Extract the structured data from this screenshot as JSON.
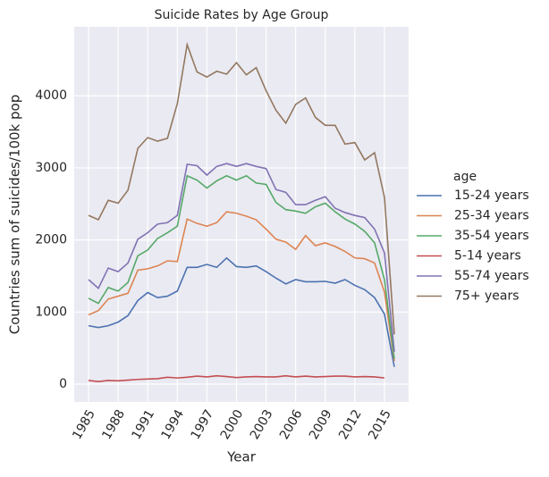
{
  "chart_data": {
    "type": "line",
    "title": "Suicide Rates by Age Group",
    "xlabel": "Year",
    "ylabel": "Countries sum of suicides/100k pop",
    "legend_title": "age",
    "legend": "right",
    "grid": true,
    "x": [
      1985,
      1986,
      1987,
      1988,
      1989,
      1990,
      1991,
      1992,
      1993,
      1994,
      1995,
      1996,
      1997,
      1998,
      1999,
      2000,
      2001,
      2002,
      2003,
      2004,
      2005,
      2006,
      2007,
      2008,
      2009,
      2010,
      2011,
      2012,
      2013,
      2014,
      2015,
      2016
    ],
    "xlim": [
      1983.55,
      2017.45
    ],
    "xticks": [
      1985,
      1988,
      1991,
      1994,
      1997,
      2000,
      2003,
      2006,
      2009,
      2012,
      2015
    ],
    "ylim": [
      -248,
      4957
    ],
    "yticks": [
      0,
      1000,
      2000,
      3000,
      4000
    ],
    "series": [
      {
        "name": "15-24 years",
        "color": "#4c72b0",
        "values": [
          810,
          785,
          810,
          860,
          950,
          1160,
          1270,
          1200,
          1220,
          1290,
          1620,
          1620,
          1660,
          1620,
          1750,
          1630,
          1620,
          1640,
          1560,
          1470,
          1390,
          1450,
          1420,
          1420,
          1425,
          1400,
          1450,
          1370,
          1310,
          1200,
          970,
          240
        ]
      },
      {
        "name": "25-34 years",
        "color": "#dd8452",
        "values": [
          960,
          1020,
          1180,
          1220,
          1260,
          1580,
          1600,
          1640,
          1710,
          1700,
          2290,
          2230,
          2190,
          2240,
          2390,
          2370,
          2330,
          2280,
          2150,
          2010,
          1970,
          1870,
          2060,
          1920,
          1960,
          1910,
          1840,
          1750,
          1740,
          1680,
          1280,
          320
        ]
      },
      {
        "name": "35-54 years",
        "color": "#55a868",
        "values": [
          1190,
          1120,
          1340,
          1290,
          1410,
          1780,
          1860,
          2020,
          2100,
          2190,
          2890,
          2830,
          2720,
          2820,
          2890,
          2830,
          2890,
          2790,
          2770,
          2520,
          2420,
          2400,
          2370,
          2460,
          2510,
          2390,
          2290,
          2220,
          2120,
          1960,
          1450,
          350
        ]
      },
      {
        "name": "5-14 years",
        "color": "#c44e52",
        "values": [
          50,
          35,
          50,
          45,
          55,
          65,
          70,
          75,
          95,
          85,
          95,
          110,
          100,
          115,
          105,
          90,
          100,
          105,
          100,
          100,
          115,
          100,
          110,
          100,
          105,
          110,
          110,
          100,
          105,
          100,
          85,
          null
        ]
      },
      {
        "name": "55-74 years",
        "color": "#8172b3",
        "values": [
          1450,
          1330,
          1610,
          1560,
          1680,
          2010,
          2100,
          2220,
          2240,
          2340,
          3050,
          3030,
          2900,
          3020,
          3060,
          3020,
          3060,
          3020,
          2990,
          2700,
          2660,
          2490,
          2490,
          2550,
          2600,
          2440,
          2380,
          2340,
          2310,
          2150,
          1820,
          450
        ]
      },
      {
        "name": "75+ years",
        "color": "#937860",
        "values": [
          2340,
          2280,
          2550,
          2510,
          2690,
          3270,
          3420,
          3370,
          3410,
          3890,
          4710,
          4330,
          4260,
          4340,
          4300,
          4460,
          4290,
          4390,
          4070,
          3800,
          3620,
          3880,
          3970,
          3700,
          3590,
          3590,
          3330,
          3350,
          3110,
          3210,
          2590,
          690
        ]
      }
    ]
  }
}
